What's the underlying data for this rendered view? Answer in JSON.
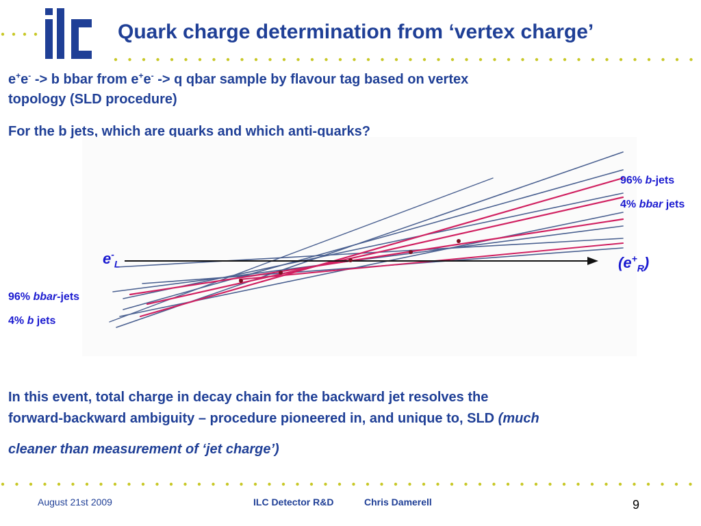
{
  "slide": {
    "title": "Quark charge determination from ‘vertex charge’",
    "logo_text": "ilc",
    "intro": {
      "line1_a": "e",
      "line1_sup1": "+",
      "line1_b": "e",
      "line1_sup2": "-",
      "line1_c": " -> b bbar from e",
      "line1_sup3": "+",
      "line1_d": "e",
      "line1_sup4": "-",
      "line1_e": " -> q qbar sample by flavour tag based on vertex",
      "line2": "topology (SLD procedure)"
    },
    "question": "For the b jets, which are quarks and which anti-quarks?",
    "diagram": {
      "forward_label_1_pct": "96% ",
      "forward_label_1_q": "b",
      "forward_label_1_rest": "-jets",
      "forward_label_2_pct": "4% ",
      "forward_label_2_q": "bbar",
      "forward_label_2_rest": " jets",
      "backward_label_1_pct": "96% ",
      "backward_label_1_q": "bbar",
      "backward_label_1_rest": "-jets",
      "backward_label_2_pct": "4% ",
      "backward_label_2_q": "b",
      "backward_label_2_rest": " jets",
      "left_beam_base": "e",
      "left_beam_sup": "-",
      "left_beam_sub": "L",
      "right_beam_open": "(",
      "right_beam_base": "e",
      "right_beam_sup": "+",
      "right_beam_sub": "R",
      "right_beam_close": ")"
    },
    "conclusion": {
      "line1": "In this event, total charge in decay chain for the backward jet resolves the",
      "line2_normal": "forward-backward ambiguity – procedure pioneered in, and unique to, SLD ",
      "line2_italic": "(much",
      "line3_italic": "cleaner than measurement of ‘jet charge’)"
    },
    "footer": {
      "date": "August 21st  2009",
      "event": "ILC Detector R&D",
      "author": "Chris Damerell",
      "page": "9"
    }
  },
  "colors": {
    "title_blue": "#1f3f96",
    "label_blue": "#1a1ad0",
    "track_blue": "#4a6090",
    "track_red": "#d02060",
    "dot_yellow": "#c8c828"
  }
}
